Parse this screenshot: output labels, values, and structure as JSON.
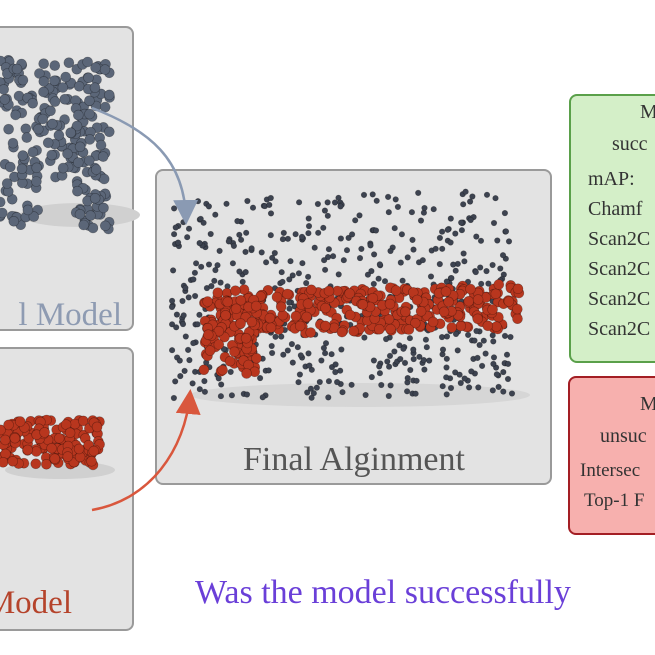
{
  "panels": {
    "cad_model": "l Model",
    "scan_model": "Model",
    "final": "Final Alginment"
  },
  "success_box": {
    "title": "M",
    "subtitle": "succ",
    "metrics": [
      "mAP:",
      "Chamf",
      "Scan2C",
      "Scan2C",
      "Scan2C",
      "Scan2C"
    ]
  },
  "failure_box": {
    "title": "M",
    "subtitle": "unsuc",
    "metrics": [
      "Intersec",
      "Top-1 F"
    ]
  },
  "question": "Was the model successfully"
}
